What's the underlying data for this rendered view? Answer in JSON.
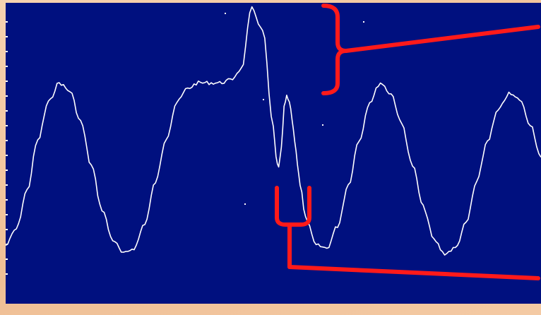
{
  "colors": {
    "screen_background": "#00107f",
    "trace": "#ffffff",
    "annotation": "#ff1a1a",
    "frame": "#f3c9a3"
  },
  "chart_data": {
    "type": "line",
    "title": "",
    "xlabel": "",
    "ylabel": "",
    "grid": false,
    "xlim": [
      0,
      100
    ],
    "ylim": [
      0,
      100
    ],
    "series": [
      {
        "values_description_free": true,
        "x": [
          0,
          2,
          4,
          6,
          8,
          10,
          12,
          14,
          16,
          18,
          20,
          22,
          24,
          26,
          28,
          30,
          32,
          34,
          36,
          38,
          40,
          42,
          44,
          46,
          48,
          50,
          50.5,
          51,
          51.5,
          52,
          52.5,
          53,
          53.5,
          54,
          54.5,
          55,
          56,
          58,
          60,
          62,
          64,
          66,
          68,
          70,
          72,
          74,
          76,
          78,
          80,
          82,
          84,
          86,
          88,
          90,
          92,
          94,
          96,
          98,
          100
        ],
        "y": [
          14,
          20,
          34,
          52,
          66,
          73,
          70,
          59,
          43,
          27,
          16,
          11,
          13,
          22,
          37,
          53,
          66,
          71,
          73,
          73,
          73,
          74,
          78,
          100,
          92,
          57,
          46,
          42,
          49,
          64,
          68,
          66,
          60,
          52,
          44,
          36,
          24,
          14,
          13,
          21,
          36,
          52,
          66,
          73,
          69,
          58,
          43,
          28,
          16,
          11,
          13,
          22,
          37,
          52,
          63,
          69,
          67,
          58,
          46
        ]
      }
    ],
    "annotations": [
      {
        "kind": "bracket",
        "side": "right",
        "target": "spike"
      },
      {
        "kind": "bracket",
        "side": "bottom",
        "target": "notch"
      }
    ]
  }
}
